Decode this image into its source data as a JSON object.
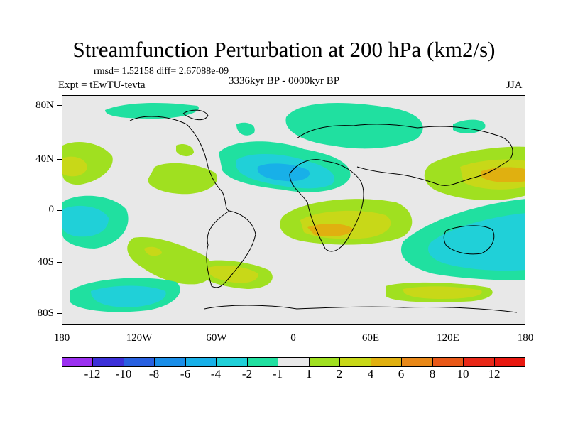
{
  "title": "Streamfunction Perturbation at 200 hPa (km2/s)",
  "stats": "rmsd= 1.52158 diff= 2.67088e-09",
  "experiment": "Expt = tEwTU-tevta",
  "period": "3336kyr BP - 0000kyr BP",
  "season": "JJA",
  "lat_labels": [
    "80N",
    "40N",
    "0",
    "40S",
    "80S"
  ],
  "lon_labels": [
    "180",
    "120W",
    "60W",
    "0",
    "60E",
    "120E",
    "180"
  ],
  "colorbar": {
    "labels": [
      "-12",
      "-10",
      "-8",
      "-6",
      "-4",
      "-2",
      "-1",
      "1",
      "2",
      "4",
      "6",
      "8",
      "10",
      "12"
    ],
    "colors": [
      "#9b30f0",
      "#3c30d8",
      "#2860e0",
      "#1a8ee8",
      "#18b0e8",
      "#20d0d8",
      "#20e0a0",
      "#e8e8e8",
      "#a0e020",
      "#c8d818",
      "#e0b010",
      "#e88818",
      "#e85818",
      "#e82818",
      "#e81810"
    ]
  },
  "map_colors": {
    "background": "#e8e8e8",
    "neg1": "#20e0a0",
    "neg2": "#20d0d8",
    "neg3": "#18b0e8",
    "pos1": "#a0e020",
    "pos2": "#c8d818",
    "pos3": "#e0b010"
  }
}
